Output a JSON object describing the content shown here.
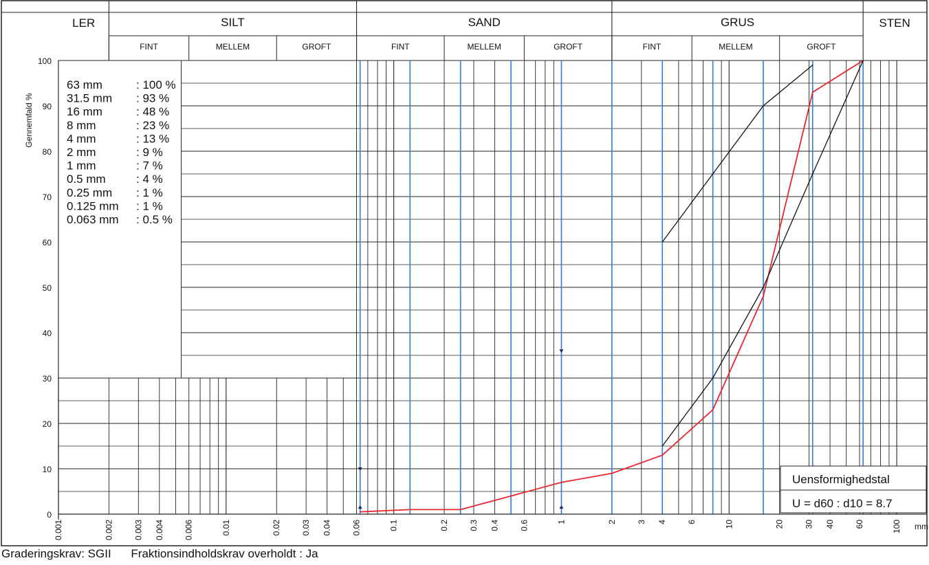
{
  "chart_data": {
    "type": "line",
    "x_unit": "mm",
    "y_label": "Gennemfald %",
    "x_scale": "log",
    "xlim": [
      0.001,
      150
    ],
    "ylim": [
      0,
      100
    ],
    "y_ticks": [
      0,
      10,
      20,
      30,
      40,
      50,
      60,
      70,
      80,
      90,
      100
    ],
    "x_tick_labels": [
      {
        "v": 0.001,
        "t": "0.001"
      },
      {
        "v": 0.002,
        "t": "0.002"
      },
      {
        "v": 0.003,
        "t": "0.003"
      },
      {
        "v": 0.004,
        "t": "0.004"
      },
      {
        "v": 0.006,
        "t": "0.006"
      },
      {
        "v": 0.01,
        "t": "0.01"
      },
      {
        "v": 0.02,
        "t": "0.02"
      },
      {
        "v": 0.03,
        "t": "0.03"
      },
      {
        "v": 0.04,
        "t": "0.04"
      },
      {
        "v": 0.06,
        "t": "0.06"
      },
      {
        "v": 0.1,
        "t": "0.1"
      },
      {
        "v": 0.2,
        "t": "0.2"
      },
      {
        "v": 0.3,
        "t": "0.3"
      },
      {
        "v": 0.4,
        "t": "0.4"
      },
      {
        "v": 0.6,
        "t": "0.6"
      },
      {
        "v": 1,
        "t": "1"
      },
      {
        "v": 2,
        "t": "2"
      },
      {
        "v": 3,
        "t": "3"
      },
      {
        "v": 4,
        "t": "4"
      },
      {
        "v": 6,
        "t": "6"
      },
      {
        "v": 10,
        "t": "10"
      },
      {
        "v": 20,
        "t": "20"
      },
      {
        "v": 30,
        "t": "30"
      },
      {
        "v": 40,
        "t": "40"
      },
      {
        "v": 60,
        "t": "60"
      },
      {
        "v": 100,
        "t": "100"
      }
    ],
    "header_groups": [
      {
        "label": "LER",
        "from": 0.001,
        "to": 0.002
      },
      {
        "label": "SILT",
        "from": 0.002,
        "to": 0.06
      },
      {
        "label": "SAND",
        "from": 0.06,
        "to": 2
      },
      {
        "label": "GRUS",
        "from": 2,
        "to": 63
      },
      {
        "label": "STEN",
        "from": 63,
        "to": 150
      }
    ],
    "header_subs": [
      {
        "label": "FINT",
        "from": 0.002,
        "to": 0.006
      },
      {
        "label": "MELLEM",
        "from": 0.006,
        "to": 0.02
      },
      {
        "label": "GROFT",
        "from": 0.02,
        "to": 0.06
      },
      {
        "label": "FINT",
        "from": 0.06,
        "to": 0.2
      },
      {
        "label": "MELLEM",
        "from": 0.2,
        "to": 0.6
      },
      {
        "label": "GROFT",
        "from": 0.6,
        "to": 2
      },
      {
        "label": "FINT",
        "from": 2,
        "to": 6
      },
      {
        "label": "MELLEM",
        "from": 6,
        "to": 20
      },
      {
        "label": "GROFT",
        "from": 20,
        "to": 63
      }
    ],
    "sieve_lines": [
      0.063,
      0.125,
      0.25,
      0.5,
      1,
      2,
      4,
      8,
      16,
      31.5,
      63
    ],
    "series": [
      {
        "color": "#e8262b",
        "x": [
          0.063,
          0.125,
          0.25,
          0.5,
          1,
          2,
          4,
          8,
          16,
          31.5,
          63
        ],
        "y": [
          0.5,
          1,
          1,
          4,
          7,
          9,
          13,
          23,
          48,
          93,
          100
        ]
      },
      {
        "color": "#111111",
        "x": [
          4,
          8,
          16,
          31.5
        ],
        "y": [
          60,
          75,
          90,
          99
        ]
      },
      {
        "color": "#111111",
        "x": [
          4,
          8,
          16,
          31.5,
          63
        ],
        "y": [
          15,
          30,
          50,
          75,
          100
        ]
      }
    ],
    "markers": [
      {
        "x": 0.063,
        "y": 10,
        "dir": "down"
      },
      {
        "x": 0.063,
        "y": 1.5,
        "dir": "up"
      },
      {
        "x": 1,
        "y": 36,
        "dir": "down"
      },
      {
        "x": 1,
        "y": 1.5,
        "dir": "up"
      }
    ],
    "sieve_table": [
      {
        "size": "63 mm",
        "pct": ": 100 %"
      },
      {
        "size": "31.5 mm",
        "pct": ": 93 %"
      },
      {
        "size": "16 mm",
        "pct": ": 48 %"
      },
      {
        "size": "8 mm",
        "pct": ": 23 %"
      },
      {
        "size": "4 mm",
        "pct": ": 13 %"
      },
      {
        "size": "2 mm",
        "pct": ": 9 %"
      },
      {
        "size": "1 mm",
        "pct": ": 7 %"
      },
      {
        "size": "0.5 mm",
        "pct": ": 4 %"
      },
      {
        "size": "0.25 mm",
        "pct": ": 1 %"
      },
      {
        "size": "0.125 mm",
        "pct": ": 1 %"
      },
      {
        "size": "0.063 mm",
        "pct": ": 0.5 %"
      }
    ],
    "uniformity_title": "Uensformighedstal",
    "uniformity_value": "U = d60 : d10 = 8.7"
  },
  "footer": {
    "requirement": "Graderingskrav: SGII",
    "fraction": "Fraktionsindholdskrav overholdt : Ja"
  }
}
